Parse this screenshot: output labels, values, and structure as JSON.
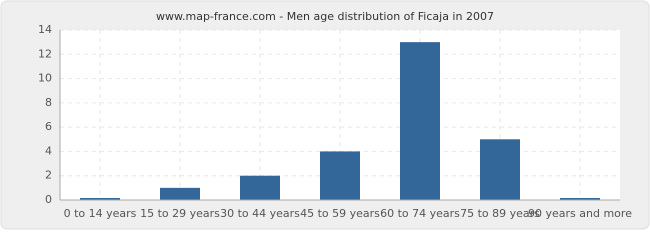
{
  "chart_data": {
    "type": "bar",
    "title": "www.map-france.com - Men age distribution of Ficaja in 2007",
    "categories": [
      "0 to 14 years",
      "15 to 29 years",
      "30 to 44 years",
      "45 to 59 years",
      "60 to 74 years",
      "75 to 89 years",
      "90 years and more"
    ],
    "values": [
      0,
      1,
      2,
      4,
      13,
      5,
      0
    ],
    "color": "#336699",
    "ylim": [
      0,
      14
    ],
    "yticks": [
      0,
      2,
      4,
      6,
      8,
      10,
      12,
      14
    ],
    "grid": true
  }
}
